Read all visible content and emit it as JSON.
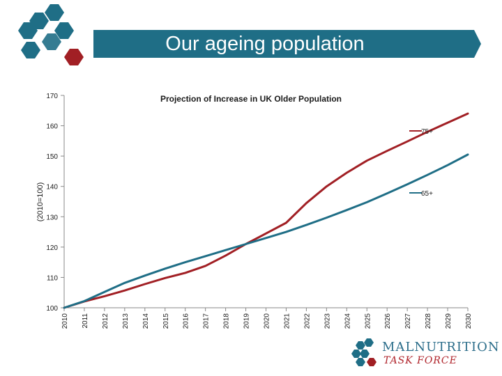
{
  "slide": {
    "title": "Our ageing population"
  },
  "colors": {
    "teal": "#1f6e86",
    "red": "#a11f24",
    "grid_axis": "#888888"
  },
  "brand": {
    "line1": "MALNUTRITION",
    "line2": "TASK FORCE"
  },
  "chart_data": {
    "type": "line",
    "title": "Projection of Increase in UK Older Population",
    "xlabel": "",
    "ylabel": "(2010=100)",
    "ylim": [
      100,
      170
    ],
    "yticks": [
      100,
      110,
      120,
      130,
      140,
      150,
      160,
      170
    ],
    "categories": [
      "2010",
      "2011",
      "2012",
      "2013",
      "2014",
      "2015",
      "2016",
      "2017",
      "2018",
      "2019",
      "2020",
      "2021",
      "2022",
      "2023",
      "2024",
      "2025",
      "2026",
      "2027",
      "2028",
      "2029",
      "2030"
    ],
    "series": [
      {
        "name": "75+",
        "color": "#a11f24",
        "values": [
          100,
          102.1,
          103.8,
          105.7,
          107.8,
          109.8,
          111.5,
          113.8,
          117.2,
          121,
          124.5,
          128,
          134.5,
          140,
          144.5,
          148.5,
          151.7,
          154.8,
          158,
          161,
          164
        ]
      },
      {
        "name": "65+",
        "color": "#1f6e86",
        "values": [
          100,
          102.2,
          105.2,
          108.2,
          110.6,
          112.9,
          115,
          117,
          119,
          121,
          123,
          125,
          127.3,
          129.7,
          132.2,
          134.8,
          137.7,
          140.7,
          143.8,
          147,
          150.5
        ]
      }
    ]
  }
}
